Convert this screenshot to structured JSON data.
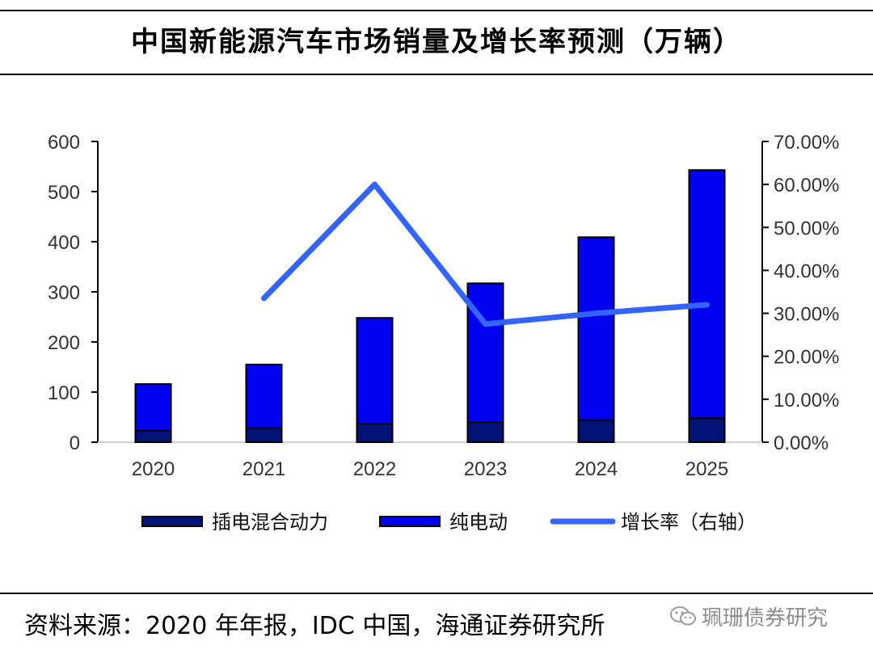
{
  "header": {
    "title": "中国新能源汽车市场销量及增长率预测（万辆）"
  },
  "footer": {
    "source": "资料来源：2020 年年报，IDC 中国，海通证券研究所",
    "watermark": "珮珊债券研究"
  },
  "colors": {
    "phev": "#001478",
    "bev": "#0000f0",
    "growth": "#3364ff",
    "axis": "#000000"
  },
  "chart_data": {
    "type": "bar",
    "stacked": true,
    "categories": [
      "2020",
      "2021",
      "2022",
      "2023",
      "2024",
      "2025"
    ],
    "series": [
      {
        "name": "插电混合动力",
        "kind": "bar",
        "values": [
          23,
          28,
          37,
          40,
          44,
          48
        ]
      },
      {
        "name": "纯电动",
        "kind": "bar",
        "values": [
          93,
          127,
          211,
          277,
          365,
          495
        ]
      },
      {
        "name": "增长率（右轴）",
        "kind": "line",
        "axis": "right",
        "values": [
          null,
          0.335,
          0.6,
          0.275,
          0.3,
          0.32
        ]
      }
    ],
    "y_left": {
      "ylim": [
        0,
        600
      ],
      "ticks": [
        "0",
        "100",
        "200",
        "300",
        "400",
        "500",
        "600"
      ]
    },
    "y_right": {
      "ylim": [
        0,
        0.7
      ],
      "ticks": [
        "0.00%",
        "10.00%",
        "20.00%",
        "30.00%",
        "40.00%",
        "50.00%",
        "60.00%",
        "70.00%"
      ]
    },
    "legend": {
      "position": "bottom",
      "labels": [
        "插电混合动力",
        "纯电动",
        "增长率（右轴）"
      ]
    },
    "title": "",
    "xlabel": "",
    "ylabel": ""
  }
}
